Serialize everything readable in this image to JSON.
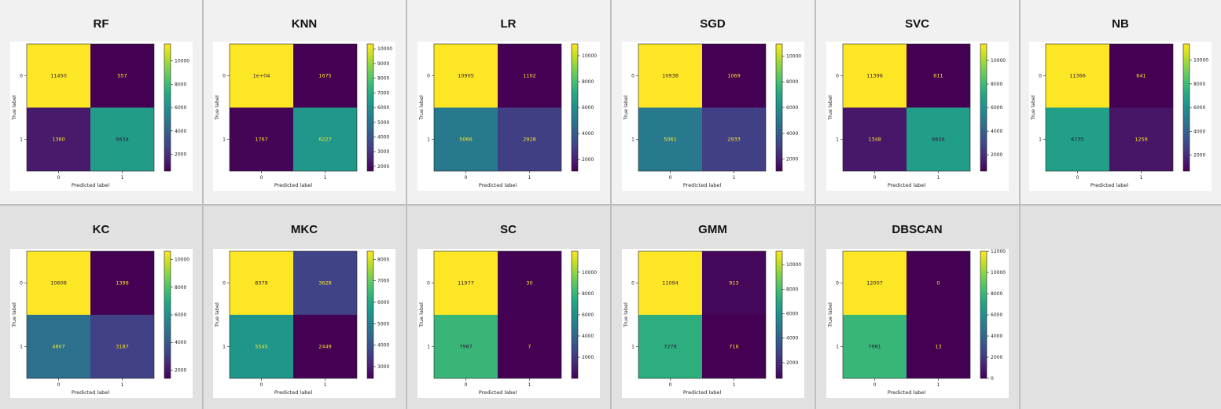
{
  "chart_data": [
    {
      "type": "heatmap",
      "title": "RF",
      "xlabel": "Predicted label",
      "ylabel": "True label",
      "x_ticks": [
        "0",
        "1"
      ],
      "y_ticks": [
        "0",
        "1"
      ],
      "matrix": [
        [
          11450,
          557
        ],
        [
          1360,
          6634
        ]
      ],
      "cell_labels": [
        "11450",
        "557",
        "1360",
        "6634"
      ],
      "colorbar_ticks": [
        2000,
        4000,
        6000,
        8000,
        10000
      ],
      "colorbar_range": [
        557,
        11450
      ]
    },
    {
      "type": "heatmap",
      "title": "KNN",
      "xlabel": "Predicted label",
      "ylabel": "True label",
      "x_ticks": [
        "0",
        "1"
      ],
      "y_ticks": [
        "0",
        "1"
      ],
      "matrix": [
        [
          10332,
          1675
        ],
        [
          1767,
          6227
        ]
      ],
      "cell_labels": [
        "1e+04",
        "1675",
        "1767",
        "6227"
      ],
      "colorbar_ticks": [
        2000,
        3000,
        4000,
        5000,
        6000,
        7000,
        8000,
        9000,
        10000
      ],
      "colorbar_range": [
        1675,
        10332
      ]
    },
    {
      "type": "heatmap",
      "title": "LR",
      "xlabel": "Predicted label",
      "ylabel": "True label",
      "x_ticks": [
        "0",
        "1"
      ],
      "y_ticks": [
        "0",
        "1"
      ],
      "matrix": [
        [
          10905,
          1102
        ],
        [
          5066,
          2928
        ]
      ],
      "cell_labels": [
        "10905",
        "1102",
        "5066",
        "2928"
      ],
      "colorbar_ticks": [
        2000,
        4000,
        6000,
        8000,
        10000
      ],
      "colorbar_range": [
        1102,
        10905
      ]
    },
    {
      "type": "heatmap",
      "title": "SGD",
      "xlabel": "Predicted label",
      "ylabel": "True label",
      "x_ticks": [
        "0",
        "1"
      ],
      "y_ticks": [
        "0",
        "1"
      ],
      "matrix": [
        [
          10938,
          1069
        ],
        [
          5061,
          2933
        ]
      ],
      "cell_labels": [
        "10938",
        "1069",
        "5061",
        "2933"
      ],
      "colorbar_ticks": [
        2000,
        4000,
        6000,
        8000,
        10000
      ],
      "colorbar_range": [
        1069,
        10938
      ]
    },
    {
      "type": "heatmap",
      "title": "SVC",
      "xlabel": "Predicted label",
      "ylabel": "True label",
      "x_ticks": [
        "0",
        "1"
      ],
      "y_ticks": [
        "0",
        "1"
      ],
      "matrix": [
        [
          11396,
          611
        ],
        [
          1348,
          6646
        ]
      ],
      "cell_labels": [
        "11396",
        "611",
        "1348",
        "6646"
      ],
      "colorbar_ticks": [
        2000,
        4000,
        6000,
        8000,
        10000
      ],
      "colorbar_range": [
        611,
        11396
      ]
    },
    {
      "type": "heatmap",
      "title": "NB",
      "xlabel": "Predicted label",
      "ylabel": "True label",
      "x_ticks": [
        "0",
        "1"
      ],
      "y_ticks": [
        "0",
        "1"
      ],
      "matrix": [
        [
          11366,
          641
        ],
        [
          6735,
          1259
        ]
      ],
      "cell_labels": [
        "11366",
        "641",
        "6735",
        "1259"
      ],
      "colorbar_ticks": [
        2000,
        4000,
        6000,
        8000,
        10000
      ],
      "colorbar_range": [
        641,
        11366
      ]
    },
    {
      "type": "heatmap",
      "title": "KC",
      "xlabel": "Predicted label",
      "ylabel": "True label",
      "x_ticks": [
        "0",
        "1"
      ],
      "y_ticks": [
        "0",
        "1"
      ],
      "matrix": [
        [
          10608,
          1399
        ],
        [
          4807,
          3187
        ]
      ],
      "cell_labels": [
        "10608",
        "1399",
        "4807",
        "3187"
      ],
      "colorbar_ticks": [
        2000,
        4000,
        6000,
        8000,
        10000
      ],
      "colorbar_range": [
        1399,
        10608
      ]
    },
    {
      "type": "heatmap",
      "title": "MKC",
      "xlabel": "Predicted label",
      "ylabel": "True label",
      "x_ticks": [
        "0",
        "1"
      ],
      "y_ticks": [
        "0",
        "1"
      ],
      "matrix": [
        [
          8379,
          3628
        ],
        [
          5545,
          2449
        ]
      ],
      "cell_labels": [
        "8379",
        "3628",
        "5545",
        "2449"
      ],
      "colorbar_ticks": [
        3000,
        4000,
        5000,
        6000,
        7000,
        8000
      ],
      "colorbar_range": [
        2449,
        8379
      ]
    },
    {
      "type": "heatmap",
      "title": "SC",
      "xlabel": "Predicted label",
      "ylabel": "True label",
      "x_ticks": [
        "0",
        "1"
      ],
      "y_ticks": [
        "0",
        "1"
      ],
      "matrix": [
        [
          11977,
          30
        ],
        [
          7987,
          7
        ]
      ],
      "cell_labels": [
        "11977",
        "30",
        "7987",
        "7"
      ],
      "colorbar_ticks": [
        2000,
        4000,
        6000,
        8000,
        10000
      ],
      "colorbar_range": [
        7,
        11977
      ]
    },
    {
      "type": "heatmap",
      "title": "GMM",
      "xlabel": "Predicted label",
      "ylabel": "True label",
      "x_ticks": [
        "0",
        "1"
      ],
      "y_ticks": [
        "0",
        "1"
      ],
      "matrix": [
        [
          11094,
          913
        ],
        [
          7278,
          716
        ]
      ],
      "cell_labels": [
        "11094",
        "913",
        "7278",
        "716"
      ],
      "colorbar_ticks": [
        2000,
        4000,
        6000,
        8000,
        10000
      ],
      "colorbar_range": [
        716,
        11094
      ]
    },
    {
      "type": "heatmap",
      "title": "DBSCAN",
      "xlabel": "Predicted label",
      "ylabel": "True label",
      "x_ticks": [
        "0",
        "1"
      ],
      "y_ticks": [
        "0",
        "1"
      ],
      "matrix": [
        [
          12007,
          0
        ],
        [
          7981,
          13
        ]
      ],
      "cell_labels": [
        "12007",
        "0",
        "7981",
        "13"
      ],
      "colorbar_ticks": [
        0,
        2000,
        4000,
        6000,
        8000,
        10000,
        12000
      ],
      "colorbar_range": [
        0,
        12007
      ]
    }
  ],
  "colormap": "viridis"
}
